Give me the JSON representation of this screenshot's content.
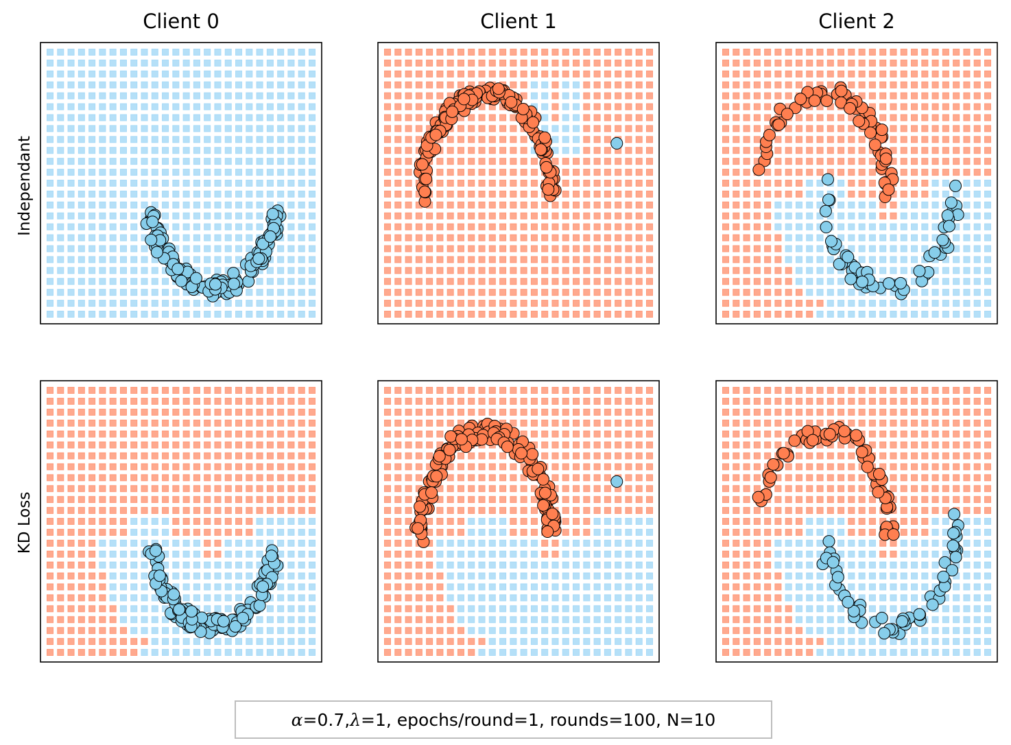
{
  "figure": {
    "columns": [
      "Client 0",
      "Client 1",
      "Client 2"
    ],
    "rows": [
      "Independant",
      "KD Loss"
    ],
    "caption_parts": {
      "alpha_symbol": "α",
      "alpha_value": "=0.7, ",
      "lambda_symbol": "λ",
      "rest": "=1, epochs/round=1, rounds=100, N=10"
    }
  },
  "chart_data": {
    "type": "scatter",
    "colors": {
      "class0": "#87ceeb",
      "class1": "#ff7f50",
      "grid0": "#a8daf7",
      "grid1": "#ff9a7a"
    },
    "grid": {
      "nx": 26,
      "ny": 25,
      "xlim": [
        -1.5,
        2.5
      ],
      "ylim": [
        -1.0,
        1.5
      ]
    },
    "panels": [
      {
        "row": "Independant",
        "column": "Client 0",
        "boundary": {
          "kind": "all",
          "cls": 0
        },
        "points": {
          "cls": 0,
          "arc": "upper",
          "cx": 1.0,
          "cy": 0.25,
          "r": 1.0,
          "jitter": 0.08,
          "n": 130,
          "tmin": 0.1,
          "tmax": 0.9
        }
      },
      {
        "row": "Independant",
        "column": "Client 1",
        "boundary": {
          "kind": "all",
          "cls": 1,
          "exceptions": [
            [
              0.7,
              0.5,
              1.4,
              1.2
            ],
            [
              1.0,
              0.8,
              1.2,
              1.2
            ]
          ]
        },
        "points": {
          "cls": 1,
          "arc": "lower",
          "cx": 0.0,
          "cy": 0.1,
          "r": 1.0,
          "jitter": 0.08,
          "n": 150,
          "tmin": 0.0,
          "tmax": 1.0
        },
        "extra_points": [
          {
            "cls": 0,
            "x": 2.0,
            "y": 0.63
          }
        ]
      },
      {
        "row": "Independant",
        "column": "Client 2",
        "boundary": {
          "kind": "mixed",
          "split": 0.25
        },
        "points": {
          "cls": 1,
          "arc": "lower",
          "cx": 0.0,
          "cy": 0.1,
          "r": 1.0,
          "jitter": 0.08,
          "n": 60,
          "tmin": 0.0,
          "tmax": 0.9
        },
        "points2": {
          "cls": 0,
          "arc": "upper",
          "cx": 1.0,
          "cy": 0.25,
          "r": 1.0,
          "jitter": 0.08,
          "n": 55,
          "tmin": 0.0,
          "tmax": 1.0
        }
      },
      {
        "row": "KD Loss",
        "column": "Client 0",
        "boundary": {
          "kind": "mixed",
          "split": 0.25
        },
        "points": {
          "cls": 0,
          "arc": "upper",
          "cx": 1.0,
          "cy": 0.25,
          "r": 1.0,
          "jitter": 0.08,
          "n": 130,
          "tmin": 0.1,
          "tmax": 0.9
        }
      },
      {
        "row": "KD Loss",
        "column": "Client 1",
        "boundary": {
          "kind": "mixed",
          "split": 0.25
        },
        "points": {
          "cls": 1,
          "arc": "lower",
          "cx": 0.0,
          "cy": 0.1,
          "r": 1.0,
          "jitter": 0.08,
          "n": 150,
          "tmin": 0.0,
          "tmax": 1.0
        },
        "extra_points": [
          {
            "cls": 0,
            "x": 2.0,
            "y": 0.63
          }
        ]
      },
      {
        "row": "KD Loss",
        "column": "Client 2",
        "boundary": {
          "kind": "mixed",
          "split": 0.25
        },
        "points": {
          "cls": 1,
          "arc": "lower",
          "cx": 0.0,
          "cy": 0.1,
          "r": 1.0,
          "jitter": 0.08,
          "n": 60,
          "tmin": 0.0,
          "tmax": 0.9
        },
        "points2": {
          "cls": 0,
          "arc": "upper",
          "cx": 1.0,
          "cy": 0.25,
          "r": 1.0,
          "jitter": 0.08,
          "n": 55,
          "tmin": 0.0,
          "tmax": 1.0
        }
      }
    ]
  }
}
